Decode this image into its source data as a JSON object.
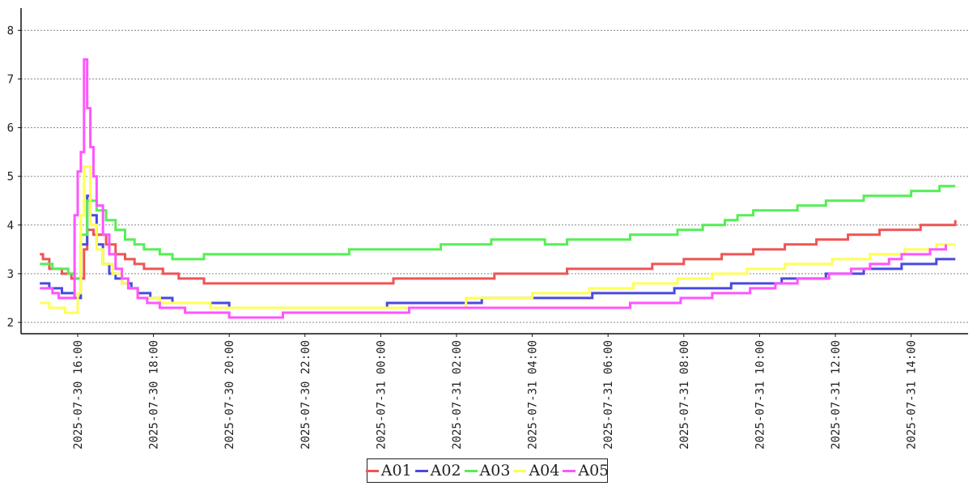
{
  "chart_data": {
    "type": "line",
    "title": "",
    "xlabel": "",
    "ylabel": "",
    "ylim": [
      1.8,
      8.4
    ],
    "y_ticks": [
      2,
      3,
      4,
      5,
      6,
      7,
      8
    ],
    "grid": "horizontal-dashed",
    "legend_position": "bottom-center",
    "x_ticks": [
      "2025-07-30 16:00",
      "2025-07-30 18:00",
      "2025-07-30 20:00",
      "2025-07-30 22:00",
      "2025-07-31 00:00",
      "2025-07-31 02:00",
      "2025-07-31 04:00",
      "2025-07-31 06:00",
      "2025-07-31 08:00",
      "2025-07-31 10:00",
      "2025-07-31 12:00",
      "2025-07-31 14:00"
    ],
    "x_range": [
      "2025-07-30 15:10",
      "2025-07-31 15:30"
    ],
    "series": [
      {
        "name": "A01",
        "color": "#ee5555",
        "points": [
          [
            "2025-07-30 15:00",
            3.4
          ],
          [
            "2025-07-30 15:05",
            3.3
          ],
          [
            "2025-07-30 15:15",
            3.1
          ],
          [
            "2025-07-30 15:35",
            3.0
          ],
          [
            "2025-07-30 15:50",
            2.9
          ],
          [
            "2025-07-30 16:10",
            3.5
          ],
          [
            "2025-07-30 16:15",
            3.9
          ],
          [
            "2025-07-30 16:25",
            3.8
          ],
          [
            "2025-07-30 16:45",
            3.6
          ],
          [
            "2025-07-30 17:00",
            3.4
          ],
          [
            "2025-07-30 17:15",
            3.3
          ],
          [
            "2025-07-30 17:30",
            3.2
          ],
          [
            "2025-07-30 17:45",
            3.1
          ],
          [
            "2025-07-30 18:15",
            3.0
          ],
          [
            "2025-07-30 18:40",
            2.9
          ],
          [
            "2025-07-30 19:20",
            2.8
          ],
          [
            "2025-07-31 00:20",
            2.9
          ],
          [
            "2025-07-31 03:00",
            3.0
          ],
          [
            "2025-07-31 04:55",
            3.1
          ],
          [
            "2025-07-31 07:10",
            3.2
          ],
          [
            "2025-07-31 08:00",
            3.3
          ],
          [
            "2025-07-31 09:00",
            3.4
          ],
          [
            "2025-07-31 09:50",
            3.5
          ],
          [
            "2025-07-31 10:40",
            3.6
          ],
          [
            "2025-07-31 11:30",
            3.7
          ],
          [
            "2025-07-31 12:20",
            3.8
          ],
          [
            "2025-07-31 13:10",
            3.9
          ],
          [
            "2025-07-31 14:15",
            4.0
          ],
          [
            "2025-07-31 15:10",
            4.1
          ]
        ]
      },
      {
        "name": "A02",
        "color": "#4a4ae0",
        "points": [
          [
            "2025-07-30 15:00",
            2.8
          ],
          [
            "2025-07-30 15:15",
            2.7
          ],
          [
            "2025-07-30 15:35",
            2.6
          ],
          [
            "2025-07-30 15:55",
            2.5
          ],
          [
            "2025-07-30 16:05",
            3.6
          ],
          [
            "2025-07-30 16:15",
            4.6
          ],
          [
            "2025-07-30 16:20",
            4.2
          ],
          [
            "2025-07-30 16:30",
            3.6
          ],
          [
            "2025-07-30 16:40",
            3.2
          ],
          [
            "2025-07-30 16:50",
            3.0
          ],
          [
            "2025-07-30 17:00",
            2.9
          ],
          [
            "2025-07-30 17:10",
            2.8
          ],
          [
            "2025-07-30 17:25",
            2.7
          ],
          [
            "2025-07-30 17:35",
            2.6
          ],
          [
            "2025-07-30 17:55",
            2.5
          ],
          [
            "2025-07-30 18:30",
            2.4
          ],
          [
            "2025-07-30 20:00",
            2.3
          ],
          [
            "2025-07-31 00:10",
            2.4
          ],
          [
            "2025-07-31 02:40",
            2.5
          ],
          [
            "2025-07-31 05:35",
            2.6
          ],
          [
            "2025-07-31 07:45",
            2.7
          ],
          [
            "2025-07-31 09:15",
            2.8
          ],
          [
            "2025-07-31 10:35",
            2.9
          ],
          [
            "2025-07-31 11:45",
            3.0
          ],
          [
            "2025-07-31 12:45",
            3.1
          ],
          [
            "2025-07-31 13:45",
            3.2
          ],
          [
            "2025-07-31 14:40",
            3.3
          ],
          [
            "2025-07-31 15:10",
            3.3
          ]
        ]
      },
      {
        "name": "A03",
        "color": "#55ee55",
        "points": [
          [
            "2025-07-30 15:00",
            3.2
          ],
          [
            "2025-07-30 15:20",
            3.1
          ],
          [
            "2025-07-30 15:45",
            3.0
          ],
          [
            "2025-07-30 15:55",
            2.9
          ],
          [
            "2025-07-30 16:05",
            3.8
          ],
          [
            "2025-07-30 16:15",
            4.5
          ],
          [
            "2025-07-30 16:30",
            4.3
          ],
          [
            "2025-07-30 16:45",
            4.1
          ],
          [
            "2025-07-30 17:00",
            3.9
          ],
          [
            "2025-07-30 17:15",
            3.7
          ],
          [
            "2025-07-30 17:30",
            3.6
          ],
          [
            "2025-07-30 17:45",
            3.5
          ],
          [
            "2025-07-30 18:10",
            3.4
          ],
          [
            "2025-07-30 18:30",
            3.3
          ],
          [
            "2025-07-30 19:20",
            3.4
          ],
          [
            "2025-07-30 23:10",
            3.5
          ],
          [
            "2025-07-31 01:35",
            3.6
          ],
          [
            "2025-07-31 02:55",
            3.7
          ],
          [
            "2025-07-31 04:20",
            3.6
          ],
          [
            "2025-07-31 04:55",
            3.7
          ],
          [
            "2025-07-31 06:35",
            3.8
          ],
          [
            "2025-07-31 07:50",
            3.9
          ],
          [
            "2025-07-31 08:30",
            4.0
          ],
          [
            "2025-07-31 09:05",
            4.1
          ],
          [
            "2025-07-31 09:25",
            4.2
          ],
          [
            "2025-07-31 09:50",
            4.3
          ],
          [
            "2025-07-31 11:00",
            4.4
          ],
          [
            "2025-07-31 11:45",
            4.5
          ],
          [
            "2025-07-31 12:45",
            4.6
          ],
          [
            "2025-07-31 14:00",
            4.7
          ],
          [
            "2025-07-31 14:45",
            4.8
          ],
          [
            "2025-07-31 15:10",
            4.8
          ]
        ]
      },
      {
        "name": "A04",
        "color": "#ffff55",
        "points": [
          [
            "2025-07-30 15:00",
            2.4
          ],
          [
            "2025-07-30 15:15",
            2.3
          ],
          [
            "2025-07-30 15:40",
            2.2
          ],
          [
            "2025-07-30 16:00",
            2.6
          ],
          [
            "2025-07-30 16:05",
            4.2
          ],
          [
            "2025-07-30 16:10",
            5.2
          ],
          [
            "2025-07-30 16:20",
            4.0
          ],
          [
            "2025-07-30 16:30",
            3.5
          ],
          [
            "2025-07-30 16:40",
            3.2
          ],
          [
            "2025-07-30 16:55",
            3.0
          ],
          [
            "2025-07-30 17:10",
            2.8
          ],
          [
            "2025-07-30 17:20",
            2.7
          ],
          [
            "2025-07-30 17:35",
            2.5
          ],
          [
            "2025-07-30 18:10",
            2.4
          ],
          [
            "2025-07-30 19:30",
            2.3
          ],
          [
            "2025-07-31 02:15",
            2.5
          ],
          [
            "2025-07-31 04:00",
            2.6
          ],
          [
            "2025-07-31 05:30",
            2.7
          ],
          [
            "2025-07-31 06:40",
            2.8
          ],
          [
            "2025-07-31 07:50",
            2.9
          ],
          [
            "2025-07-31 08:45",
            3.0
          ],
          [
            "2025-07-31 09:40",
            3.1
          ],
          [
            "2025-07-31 10:40",
            3.2
          ],
          [
            "2025-07-31 11:55",
            3.3
          ],
          [
            "2025-07-31 12:55",
            3.4
          ],
          [
            "2025-07-31 13:50",
            3.5
          ],
          [
            "2025-07-31 14:40",
            3.6
          ],
          [
            "2025-07-31 15:10",
            3.6
          ]
        ]
      },
      {
        "name": "A05",
        "color": "#ff55ff",
        "points": [
          [
            "2025-07-30 15:00",
            2.7
          ],
          [
            "2025-07-30 15:20",
            2.6
          ],
          [
            "2025-07-30 15:30",
            2.5
          ],
          [
            "2025-07-30 15:55",
            4.2
          ],
          [
            "2025-07-30 16:00",
            5.1
          ],
          [
            "2025-07-30 16:05",
            5.5
          ],
          [
            "2025-07-30 16:10",
            7.4
          ],
          [
            "2025-07-30 16:15",
            6.4
          ],
          [
            "2025-07-30 16:20",
            5.6
          ],
          [
            "2025-07-30 16:25",
            5.0
          ],
          [
            "2025-07-30 16:30",
            4.4
          ],
          [
            "2025-07-30 16:40",
            3.8
          ],
          [
            "2025-07-30 16:50",
            3.4
          ],
          [
            "2025-07-30 17:00",
            3.1
          ],
          [
            "2025-07-30 17:10",
            2.9
          ],
          [
            "2025-07-30 17:20",
            2.7
          ],
          [
            "2025-07-30 17:35",
            2.5
          ],
          [
            "2025-07-30 17:50",
            2.4
          ],
          [
            "2025-07-30 18:10",
            2.3
          ],
          [
            "2025-07-30 18:50",
            2.2
          ],
          [
            "2025-07-30 20:00",
            2.1
          ],
          [
            "2025-07-30 21:25",
            2.2
          ],
          [
            "2025-07-31 00:45",
            2.3
          ],
          [
            "2025-07-31 06:35",
            2.4
          ],
          [
            "2025-07-31 07:55",
            2.5
          ],
          [
            "2025-07-31 08:45",
            2.6
          ],
          [
            "2025-07-31 09:45",
            2.7
          ],
          [
            "2025-07-31 10:25",
            2.8
          ],
          [
            "2025-07-31 11:00",
            2.9
          ],
          [
            "2025-07-31 11:50",
            3.0
          ],
          [
            "2025-07-31 12:25",
            3.1
          ],
          [
            "2025-07-31 12:55",
            3.2
          ],
          [
            "2025-07-31 13:25",
            3.3
          ],
          [
            "2025-07-31 13:45",
            3.4
          ],
          [
            "2025-07-31 14:30",
            3.5
          ],
          [
            "2025-07-31 14:55",
            3.6
          ]
        ]
      }
    ]
  }
}
